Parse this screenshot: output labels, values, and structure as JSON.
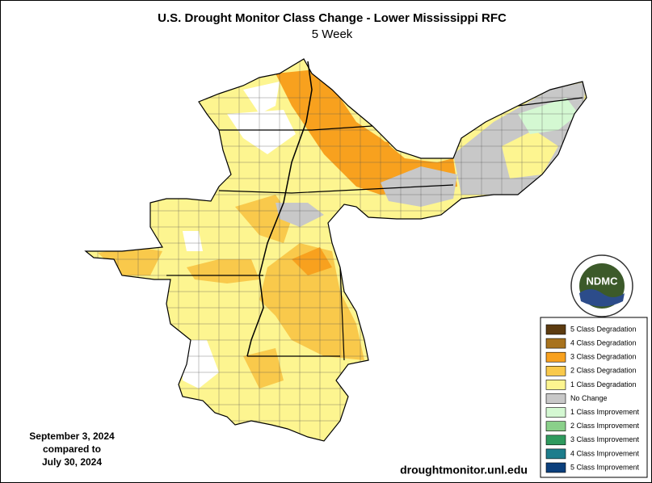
{
  "header": {
    "title": "U.S. Drought Monitor Class Change - Lower Mississippi RFC",
    "subtitle": "5 Week"
  },
  "legend": {
    "items": [
      {
        "label": "5 Class Degradation",
        "color": "#5c3b10"
      },
      {
        "label": "4 Class Degradation",
        "color": "#a8731e"
      },
      {
        "label": "3 Class Degradation",
        "color": "#f8a11e"
      },
      {
        "label": "2 Class Degradation",
        "color": "#f9c94b"
      },
      {
        "label": "1 Class Degradation",
        "color": "#fdf590"
      },
      {
        "label": "No Change",
        "color": "#c8c8c8"
      },
      {
        "label": "1 Class Improvement",
        "color": "#d4f8d2"
      },
      {
        "label": "2 Class Improvement",
        "color": "#8ad08a"
      },
      {
        "label": "3 Class Improvement",
        "color": "#2f9a5e"
      },
      {
        "label": "4 Class Improvement",
        "color": "#1d7d8c"
      },
      {
        "label": "5 Class Improvement",
        "color": "#0b3f7c"
      }
    ]
  },
  "date": {
    "line1": "September 3, 2024",
    "line2": "compared to",
    "line3": "July 30, 2024"
  },
  "logo": {
    "text": "NDMC"
  },
  "footer": {
    "url": "droughtmonitor.unl.edu"
  }
}
